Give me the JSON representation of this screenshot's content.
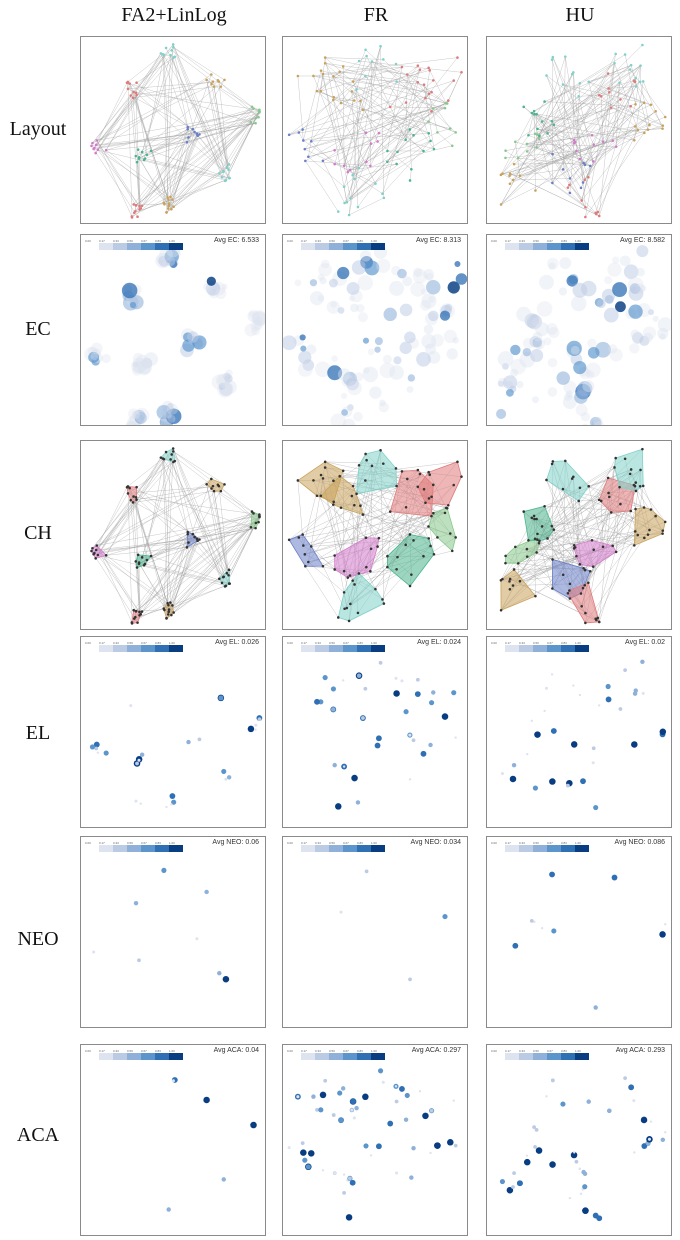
{
  "columns": [
    {
      "title": "FA2+LinLog",
      "avg": {
        "EC": "Avg EC: 6.533",
        "EL": "Avg EL: 0.026",
        "NEO": "Avg NEO: 0.06",
        "ACA": "Avg ACA: 0.04"
      }
    },
    {
      "title": "FR",
      "avg": {
        "EC": "Avg EC: 8.313",
        "EL": "Avg EL: 0.024",
        "NEO": "Avg NEO: 0.034",
        "ACA": "Avg ACA: 0.297"
      }
    },
    {
      "title": "HU",
      "avg": {
        "EC": "Avg EC: 8.582",
        "EL": "Avg EL: 0.02",
        "NEO": "Avg NEO: 0.086",
        "ACA": "Avg ACA: 0.293"
      }
    }
  ],
  "rows": [
    "Layout",
    "EC",
    "CH",
    "EL",
    "NEO",
    "ACA"
  ],
  "colorbar": {
    "ticks": [
      "0.00",
      "0.17",
      "0.33",
      "0.50",
      "0.67",
      "0.83",
      "1.00"
    ],
    "colors": [
      "#ffffff",
      "#dde3ef",
      "#bccbe4",
      "#8fb1d9",
      "#5b95cc",
      "#2f6fb4",
      "#083d82"
    ]
  },
  "cluster_colors": [
    "#7fd1c9",
    "#e07a7a",
    "#c9a25b",
    "#86c98a",
    "#6a7fc9",
    "#d47acb",
    "#4bb58d"
  ]
}
